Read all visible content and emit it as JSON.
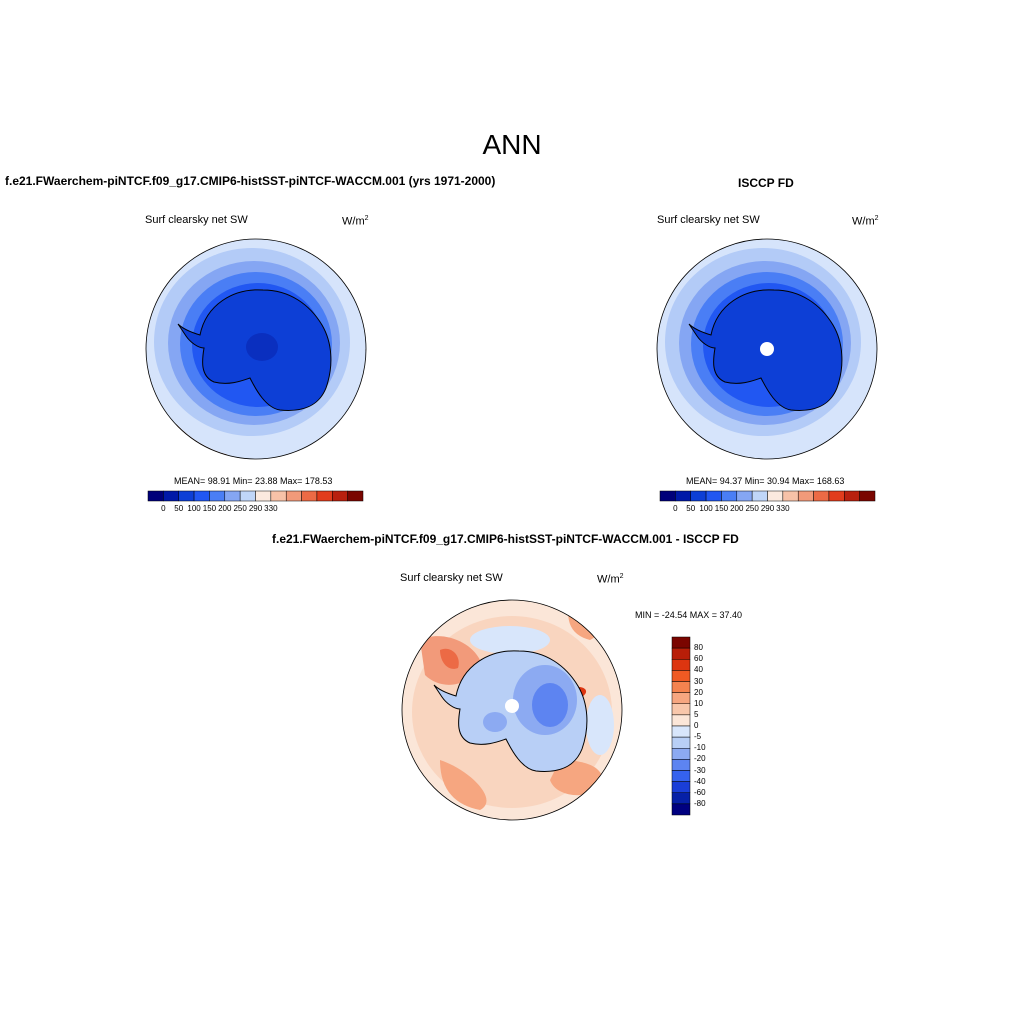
{
  "main_title": "ANN",
  "panels": [
    {
      "id": "model",
      "run_title": "f.e21.FWaerchem-piNTCF.f09_g17.CMIP6-histSST-piNTCF-WACCM.001 (yrs 1971-2000)",
      "variable": "Surf clearsky net SW",
      "units": "W/m",
      "units_exp": "2",
      "stats": "MEAN=  98.91  Min=  23.88  Max= 178.53",
      "colorbar_ticks": [
        "0",
        "50",
        "100",
        "150",
        "200",
        "250",
        "290",
        "330"
      ]
    },
    {
      "id": "obs",
      "run_title": "ISCCP FD",
      "variable": "Surf clearsky net SW",
      "units": "W/m",
      "units_exp": "2",
      "stats": "MEAN=  94.37  Min=  30.94  Max= 168.63",
      "colorbar_ticks": [
        "0",
        "50",
        "100",
        "150",
        "200",
        "250",
        "290",
        "330"
      ]
    }
  ],
  "diff": {
    "run_title": "f.e21.FWaerchem-piNTCF.f09_g17.CMIP6-histSST-piNTCF-WACCM.001 - ISCCP FD",
    "variable": "Surf clearsky net SW",
    "units": "W/m",
    "units_exp": "2",
    "stats": "MIN = -24.54 MAX =  37.40",
    "colorbar_ticks": [
      "80",
      "60",
      "40",
      "30",
      "20",
      "10",
      "5",
      "0",
      "-5",
      "-10",
      "-20",
      "-30",
      "-40",
      "-60",
      "-80"
    ]
  },
  "colors": {
    "abs_scale": [
      "#00007a",
      "#0019a8",
      "#0d3fd6",
      "#2157f2",
      "#4a7ef5",
      "#85a6f3",
      "#c0d6f8",
      "#fbeadf",
      "#f7c2a8",
      "#f29a7a",
      "#ec6a45",
      "#e13c1c",
      "#b8200e",
      "#7a0500"
    ],
    "diff_scale": [
      "#7a0500",
      "#b81e08",
      "#dd3510",
      "#ef5a23",
      "#f4834f",
      "#f6a680",
      "#f8c7ab",
      "#fbe6d8",
      "#d8e6fb",
      "#b8cff6",
      "#8caaf2",
      "#5d84f1",
      "#3562ee",
      "#1a3ed8",
      "#0620a7",
      "#000080"
    ]
  }
}
